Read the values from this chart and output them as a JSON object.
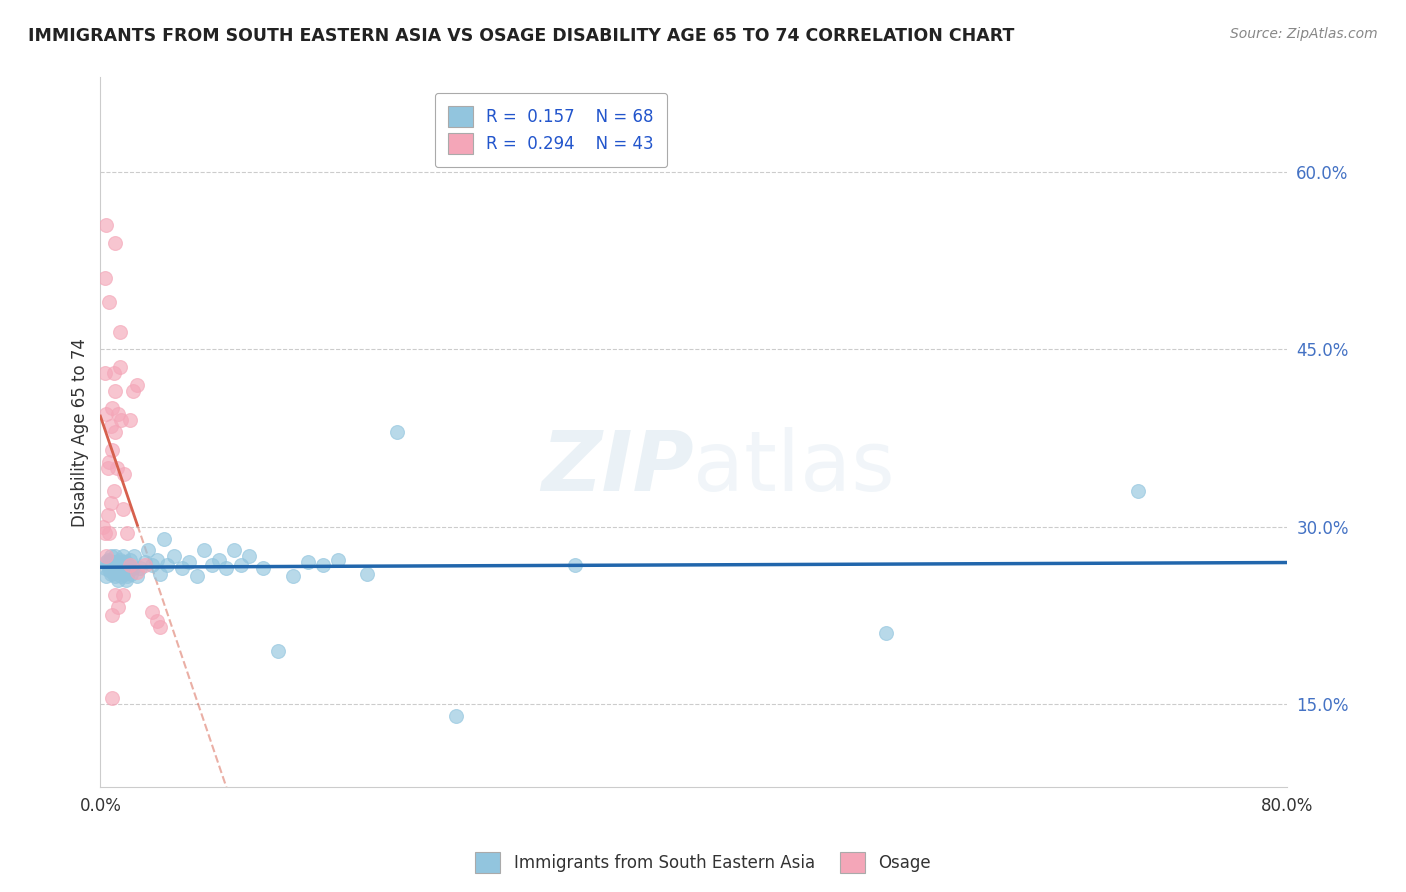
{
  "title": "IMMIGRANTS FROM SOUTH EASTERN ASIA VS OSAGE DISABILITY AGE 65 TO 74 CORRELATION CHART",
  "source": "Source: ZipAtlas.com",
  "ylabel": "Disability Age 65 to 74",
  "xlim": [
    0.0,
    0.8
  ],
  "ylim": [
    0.08,
    0.68
  ],
  "yticks": [
    0.15,
    0.3,
    0.45,
    0.6
  ],
  "ytick_labels": [
    "15.0%",
    "30.0%",
    "45.0%",
    "60.0%"
  ],
  "xticks": [
    0.0,
    0.2,
    0.4,
    0.6,
    0.8
  ],
  "xtick_labels": [
    "0.0%",
    "",
    "",
    "",
    "80.0%"
  ],
  "watermark": "ZIPatlas",
  "legend_blue_R": "0.157",
  "legend_blue_N": "68",
  "legend_pink_R": "0.294",
  "legend_pink_N": "43",
  "blue_color": "#92c5de",
  "pink_color": "#f4a6b8",
  "blue_line_color": "#2166ac",
  "pink_line_color": "#d6604d",
  "blue_scatter": [
    [
      0.003,
      0.265
    ],
    [
      0.004,
      0.27
    ],
    [
      0.004,
      0.258
    ],
    [
      0.005,
      0.268
    ],
    [
      0.005,
      0.272
    ],
    [
      0.006,
      0.263
    ],
    [
      0.006,
      0.271
    ],
    [
      0.007,
      0.275
    ],
    [
      0.007,
      0.26
    ],
    [
      0.008,
      0.268
    ],
    [
      0.008,
      0.262
    ],
    [
      0.009,
      0.27
    ],
    [
      0.009,
      0.265
    ],
    [
      0.01,
      0.258
    ],
    [
      0.01,
      0.275
    ],
    [
      0.011,
      0.262
    ],
    [
      0.011,
      0.268
    ],
    [
      0.012,
      0.255
    ],
    [
      0.012,
      0.27
    ],
    [
      0.013,
      0.265
    ],
    [
      0.013,
      0.272
    ],
    [
      0.014,
      0.265
    ],
    [
      0.014,
      0.258
    ],
    [
      0.015,
      0.27
    ],
    [
      0.015,
      0.275
    ],
    [
      0.016,
      0.26
    ],
    [
      0.016,
      0.265
    ],
    [
      0.017,
      0.255
    ],
    [
      0.017,
      0.27
    ],
    [
      0.018,
      0.258
    ],
    [
      0.018,
      0.262
    ],
    [
      0.019,
      0.268
    ],
    [
      0.02,
      0.272
    ],
    [
      0.021,
      0.26
    ],
    [
      0.022,
      0.265
    ],
    [
      0.023,
      0.275
    ],
    [
      0.025,
      0.258
    ],
    [
      0.027,
      0.265
    ],
    [
      0.03,
      0.27
    ],
    [
      0.032,
      0.28
    ],
    [
      0.035,
      0.268
    ],
    [
      0.038,
      0.272
    ],
    [
      0.04,
      0.26
    ],
    [
      0.043,
      0.29
    ],
    [
      0.045,
      0.268
    ],
    [
      0.05,
      0.275
    ],
    [
      0.055,
      0.265
    ],
    [
      0.06,
      0.27
    ],
    [
      0.065,
      0.258
    ],
    [
      0.07,
      0.28
    ],
    [
      0.075,
      0.268
    ],
    [
      0.08,
      0.272
    ],
    [
      0.085,
      0.265
    ],
    [
      0.09,
      0.28
    ],
    [
      0.095,
      0.268
    ],
    [
      0.1,
      0.275
    ],
    [
      0.11,
      0.265
    ],
    [
      0.12,
      0.195
    ],
    [
      0.13,
      0.258
    ],
    [
      0.14,
      0.27
    ],
    [
      0.15,
      0.268
    ],
    [
      0.16,
      0.272
    ],
    [
      0.18,
      0.26
    ],
    [
      0.2,
      0.38
    ],
    [
      0.24,
      0.14
    ],
    [
      0.32,
      0.268
    ],
    [
      0.53,
      0.21
    ],
    [
      0.7,
      0.33
    ]
  ],
  "pink_scatter": [
    [
      0.002,
      0.3
    ],
    [
      0.003,
      0.295
    ],
    [
      0.003,
      0.43
    ],
    [
      0.003,
      0.51
    ],
    [
      0.004,
      0.275
    ],
    [
      0.004,
      0.395
    ],
    [
      0.004,
      0.555
    ],
    [
      0.005,
      0.31
    ],
    [
      0.005,
      0.35
    ],
    [
      0.006,
      0.295
    ],
    [
      0.006,
      0.355
    ],
    [
      0.006,
      0.49
    ],
    [
      0.007,
      0.385
    ],
    [
      0.007,
      0.32
    ],
    [
      0.008,
      0.4
    ],
    [
      0.008,
      0.365
    ],
    [
      0.008,
      0.225
    ],
    [
      0.009,
      0.43
    ],
    [
      0.009,
      0.33
    ],
    [
      0.01,
      0.415
    ],
    [
      0.01,
      0.38
    ],
    [
      0.01,
      0.242
    ],
    [
      0.011,
      0.35
    ],
    [
      0.012,
      0.395
    ],
    [
      0.012,
      0.232
    ],
    [
      0.013,
      0.435
    ],
    [
      0.013,
      0.465
    ],
    [
      0.014,
      0.39
    ],
    [
      0.015,
      0.315
    ],
    [
      0.015,
      0.242
    ],
    [
      0.016,
      0.345
    ],
    [
      0.018,
      0.295
    ],
    [
      0.02,
      0.39
    ],
    [
      0.02,
      0.268
    ],
    [
      0.022,
      0.415
    ],
    [
      0.025,
      0.42
    ],
    [
      0.025,
      0.262
    ],
    [
      0.03,
      0.268
    ],
    [
      0.035,
      0.228
    ],
    [
      0.038,
      0.22
    ],
    [
      0.04,
      0.215
    ],
    [
      0.008,
      0.155
    ],
    [
      0.01,
      0.54
    ]
  ]
}
